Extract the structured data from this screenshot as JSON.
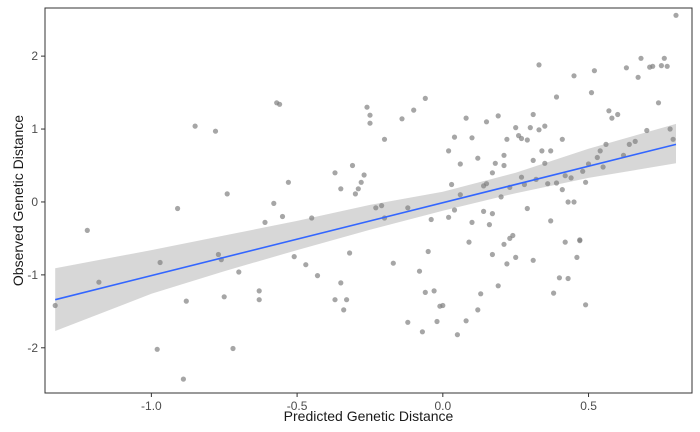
{
  "chart_data": {
    "type": "scatter",
    "title": "",
    "xlabel": "Predicted Genetic Distance",
    "ylabel": "Observed Genetic Distance",
    "xlim": [
      -1.365,
      0.855
    ],
    "ylim": [
      -2.62,
      2.66
    ],
    "x_ticks": [
      -1.0,
      -0.5,
      0.0,
      0.5
    ],
    "x_tick_labels": [
      "-1.0",
      "-0.5",
      "0.0",
      "0.5"
    ],
    "y_ticks": [
      -2,
      -1,
      0,
      1,
      2
    ],
    "y_tick_labels": [
      "-2",
      "-1",
      "0",
      "1",
      "2"
    ],
    "grid": false,
    "legend": "none",
    "colors": {
      "points": "#808080",
      "line": "#3366ff",
      "ribbon": "#bdbdbd",
      "axis": "#333333",
      "panel_background": "#ffffff"
    },
    "trend_line": {
      "x": [
        -1.33,
        0.8
      ],
      "y": [
        -1.34,
        0.79
      ]
    },
    "confidence_band": {
      "x": [
        -1.33,
        -1.0,
        -0.75,
        -0.5,
        -0.25,
        0.0,
        0.25,
        0.5,
        0.8
      ],
      "lower": [
        -1.77,
        -1.26,
        -0.95,
        -0.66,
        -0.38,
        -0.12,
        0.12,
        0.33,
        0.53
      ],
      "upper": [
        -0.91,
        -0.66,
        -0.46,
        -0.26,
        -0.04,
        0.14,
        0.4,
        0.73,
        1.07
      ]
    },
    "points": [
      {
        "x": -1.33,
        "y": -1.42
      },
      {
        "x": -1.22,
        "y": -0.39
      },
      {
        "x": -1.18,
        "y": -1.1
      },
      {
        "x": -0.98,
        "y": -2.02
      },
      {
        "x": -0.97,
        "y": -0.83
      },
      {
        "x": -0.91,
        "y": -0.09
      },
      {
        "x": -0.89,
        "y": -2.43
      },
      {
        "x": -0.88,
        "y": -1.36
      },
      {
        "x": -0.85,
        "y": 1.04
      },
      {
        "x": -0.78,
        "y": 0.97
      },
      {
        "x": -0.77,
        "y": -0.72
      },
      {
        "x": -0.76,
        "y": -0.79
      },
      {
        "x": -0.75,
        "y": -1.3
      },
      {
        "x": -0.74,
        "y": 0.11
      },
      {
        "x": -0.72,
        "y": -2.01
      },
      {
        "x": -0.7,
        "y": -0.96
      },
      {
        "x": -0.63,
        "y": -1.22
      },
      {
        "x": -0.63,
        "y": -1.34
      },
      {
        "x": -0.61,
        "y": -0.28
      },
      {
        "x": -0.58,
        "y": -0.02
      },
      {
        "x": -0.57,
        "y": 1.36
      },
      {
        "x": -0.56,
        "y": 1.34
      },
      {
        "x": -0.55,
        "y": -0.2
      },
      {
        "x": -0.53,
        "y": 0.27
      },
      {
        "x": -0.51,
        "y": -0.75
      },
      {
        "x": -0.47,
        "y": -0.86
      },
      {
        "x": -0.45,
        "y": -0.22
      },
      {
        "x": -0.43,
        "y": -1.01
      },
      {
        "x": -0.37,
        "y": -1.34
      },
      {
        "x": -0.37,
        "y": 0.4
      },
      {
        "x": -0.35,
        "y": 0.18
      },
      {
        "x": -0.35,
        "y": -1.11
      },
      {
        "x": -0.34,
        "y": -1.48
      },
      {
        "x": -0.33,
        "y": -1.34
      },
      {
        "x": -0.32,
        "y": -0.7
      },
      {
        "x": -0.31,
        "y": 0.5
      },
      {
        "x": -0.29,
        "y": 0.18
      },
      {
        "x": -0.3,
        "y": 0.11
      },
      {
        "x": -0.28,
        "y": 0.27
      },
      {
        "x": -0.27,
        "y": 0.37
      },
      {
        "x": -0.26,
        "y": 1.3
      },
      {
        "x": -0.25,
        "y": 1.19
      },
      {
        "x": -0.25,
        "y": 1.08
      },
      {
        "x": -0.23,
        "y": -0.08
      },
      {
        "x": -0.21,
        "y": -0.05
      },
      {
        "x": -0.2,
        "y": 0.86
      },
      {
        "x": -0.2,
        "y": -0.22
      },
      {
        "x": -0.17,
        "y": -0.84
      },
      {
        "x": -0.14,
        "y": 1.14
      },
      {
        "x": -0.12,
        "y": -1.65
      },
      {
        "x": -0.12,
        "y": -0.08
      },
      {
        "x": -0.1,
        "y": 1.26
      },
      {
        "x": -0.08,
        "y": -0.95
      },
      {
        "x": -0.07,
        "y": -1.78
      },
      {
        "x": -0.06,
        "y": 1.42
      },
      {
        "x": -0.06,
        "y": -1.24
      },
      {
        "x": -0.05,
        "y": -0.68
      },
      {
        "x": -0.04,
        "y": -0.24
      },
      {
        "x": -0.03,
        "y": -1.22
      },
      {
        "x": -0.01,
        "y": -1.43
      },
      {
        "x": -0.02,
        "y": -1.64
      },
      {
        "x": 0.0,
        "y": -1.42
      },
      {
        "x": 0.02,
        "y": -0.21
      },
      {
        "x": 0.03,
        "y": 0.24
      },
      {
        "x": 0.04,
        "y": -0.11
      },
      {
        "x": 0.05,
        "y": -1.82
      },
      {
        "x": 0.06,
        "y": 0.1
      },
      {
        "x": 0.08,
        "y": -1.63
      },
      {
        "x": 0.09,
        "y": -0.55
      },
      {
        "x": 0.1,
        "y": -0.28
      },
      {
        "x": 0.12,
        "y": -1.48
      },
      {
        "x": 0.13,
        "y": -1.26
      },
      {
        "x": 0.14,
        "y": -0.13
      },
      {
        "x": 0.14,
        "y": 0.22
      },
      {
        "x": 0.15,
        "y": 0.25
      },
      {
        "x": 0.16,
        "y": -0.31
      },
      {
        "x": 0.17,
        "y": -0.72
      },
      {
        "x": 0.17,
        "y": -0.16
      },
      {
        "x": 0.18,
        "y": 0.53
      },
      {
        "x": 0.19,
        "y": -1.15
      },
      {
        "x": 0.2,
        "y": 0.07
      },
      {
        "x": 0.21,
        "y": -0.58
      },
      {
        "x": 0.21,
        "y": 0.64
      },
      {
        "x": 0.22,
        "y": 0.86
      },
      {
        "x": 0.22,
        "y": -0.85
      },
      {
        "x": 0.23,
        "y": -0.5
      },
      {
        "x": 0.24,
        "y": -0.46
      },
      {
        "x": 0.25,
        "y": -0.76
      },
      {
        "x": 0.26,
        "y": 0.91
      },
      {
        "x": 0.27,
        "y": 0.87
      },
      {
        "x": 0.28,
        "y": 0.24
      },
      {
        "x": 0.29,
        "y": 0.85
      },
      {
        "x": 0.3,
        "y": 1.02
      },
      {
        "x": 0.31,
        "y": -0.8
      },
      {
        "x": 0.31,
        "y": 0.57
      },
      {
        "x": 0.32,
        "y": 0.31
      },
      {
        "x": 0.33,
        "y": 0.99
      },
      {
        "x": 0.34,
        "y": 0.7
      },
      {
        "x": 0.35,
        "y": 0.53
      },
      {
        "x": 0.36,
        "y": 0.25
      },
      {
        "x": 0.37,
        "y": -0.26
      },
      {
        "x": 0.38,
        "y": -1.25
      },
      {
        "x": 0.39,
        "y": 0.26
      },
      {
        "x": 0.4,
        "y": -1.04
      },
      {
        "x": 0.41,
        "y": 0.17
      },
      {
        "x": 0.42,
        "y": -0.55
      },
      {
        "x": 0.42,
        "y": 0.36
      },
      {
        "x": 0.43,
        "y": -1.05
      },
      {
        "x": 0.44,
        "y": 0.33
      },
      {
        "x": 0.45,
        "y": 0.0
      },
      {
        "x": 0.46,
        "y": -0.76
      },
      {
        "x": 0.47,
        "y": -0.52
      },
      {
        "x": 0.48,
        "y": 0.42
      },
      {
        "x": 0.49,
        "y": 0.27
      },
      {
        "x": 0.5,
        "y": 0.52
      },
      {
        "x": 0.51,
        "y": 1.5
      },
      {
        "x": 0.52,
        "y": 1.8
      },
      {
        "x": 0.53,
        "y": 0.61
      },
      {
        "x": 0.54,
        "y": 0.7
      },
      {
        "x": 0.55,
        "y": 0.48
      },
      {
        "x": 0.56,
        "y": 0.79
      },
      {
        "x": 0.57,
        "y": 1.25
      },
      {
        "x": 0.58,
        "y": 1.15
      },
      {
        "x": 0.6,
        "y": 1.2
      },
      {
        "x": 0.62,
        "y": 0.64
      },
      {
        "x": 0.63,
        "y": 1.84
      },
      {
        "x": 0.64,
        "y": 0.79
      },
      {
        "x": 0.66,
        "y": 0.83
      },
      {
        "x": 0.67,
        "y": 1.71
      },
      {
        "x": 0.68,
        "y": 1.97
      },
      {
        "x": 0.7,
        "y": 0.98
      },
      {
        "x": 0.71,
        "y": 1.85
      },
      {
        "x": 0.72,
        "y": 1.86
      },
      {
        "x": 0.74,
        "y": 1.36
      },
      {
        "x": 0.75,
        "y": 1.87
      },
      {
        "x": 0.76,
        "y": 1.97
      },
      {
        "x": 0.77,
        "y": 1.86
      },
      {
        "x": 0.78,
        "y": 1.0
      },
      {
        "x": 0.79,
        "y": 0.86
      },
      {
        "x": 0.8,
        "y": 2.56
      },
      {
        "x": 0.02,
        "y": 0.7
      },
      {
        "x": 0.04,
        "y": 0.89
      },
      {
        "x": 0.06,
        "y": 0.52
      },
      {
        "x": 0.08,
        "y": 1.15
      },
      {
        "x": 0.1,
        "y": 0.88
      },
      {
        "x": 0.12,
        "y": 0.6
      },
      {
        "x": 0.15,
        "y": 1.1
      },
      {
        "x": 0.17,
        "y": 0.4
      },
      {
        "x": 0.19,
        "y": 1.18
      },
      {
        "x": 0.21,
        "y": 0.5
      },
      {
        "x": 0.23,
        "y": 0.2
      },
      {
        "x": 0.25,
        "y": 1.02
      },
      {
        "x": 0.27,
        "y": 0.34
      },
      {
        "x": 0.29,
        "y": -0.09
      },
      {
        "x": 0.31,
        "y": 1.2
      },
      {
        "x": 0.33,
        "y": 1.88
      },
      {
        "x": 0.35,
        "y": 1.04
      },
      {
        "x": 0.37,
        "y": 0.7
      },
      {
        "x": 0.39,
        "y": 1.44
      },
      {
        "x": 0.41,
        "y": 0.86
      },
      {
        "x": 0.43,
        "y": 0.0
      },
      {
        "x": 0.45,
        "y": 1.73
      },
      {
        "x": 0.47,
        "y": -0.53
      },
      {
        "x": 0.49,
        "y": -1.41
      }
    ]
  }
}
